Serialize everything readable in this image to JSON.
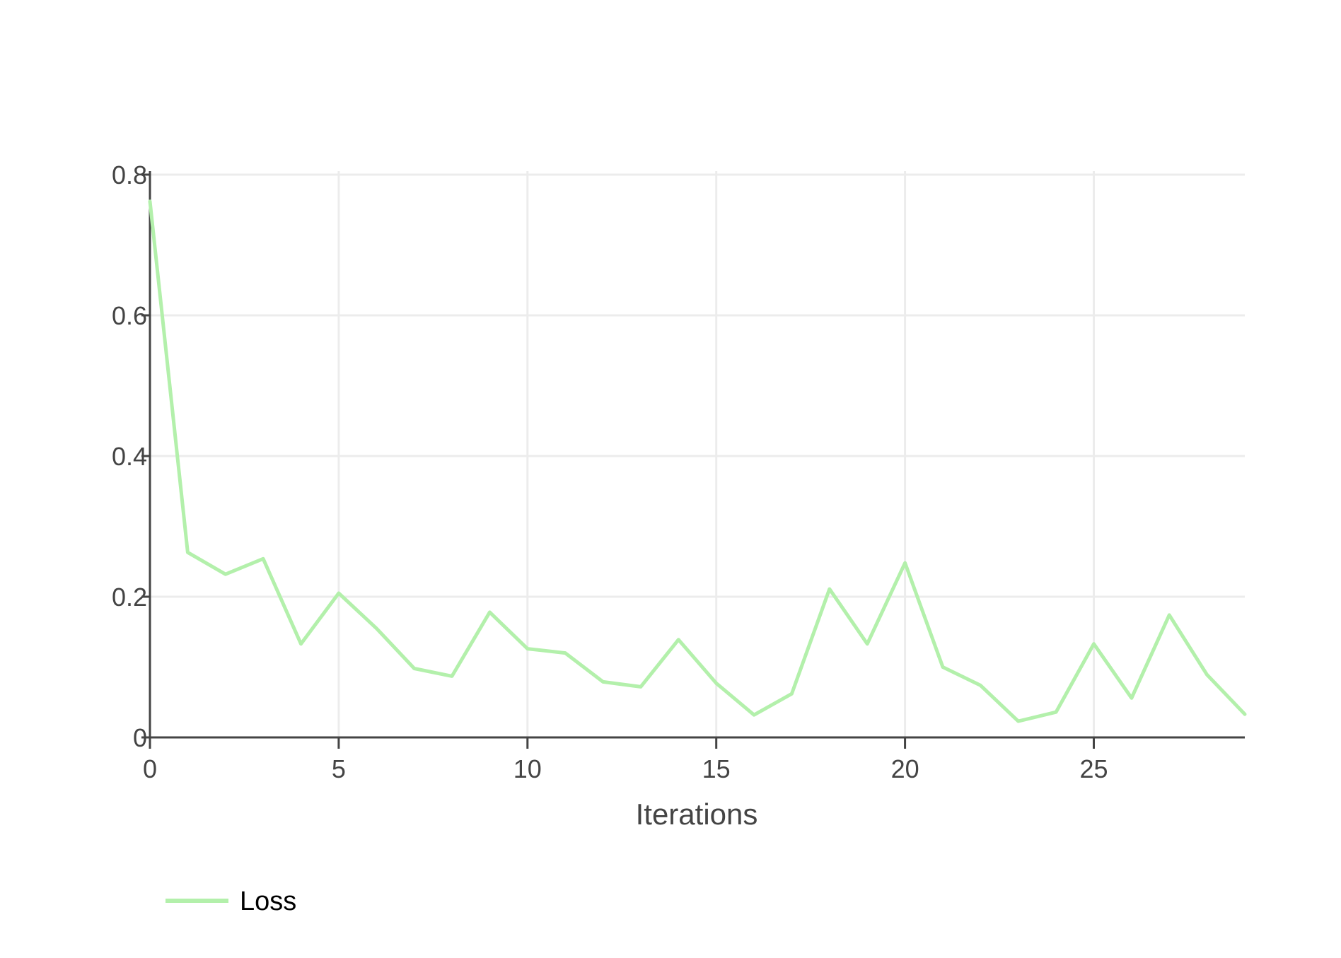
{
  "chart_data": {
    "type": "line",
    "title": "",
    "xlabel": "Iterations",
    "ylabel": "",
    "xlim": [
      0,
      29
    ],
    "ylim": [
      0,
      0.8
    ],
    "x_ticks": [
      0,
      5,
      10,
      15,
      20,
      25
    ],
    "y_ticks": [
      0,
      0.2,
      0.4,
      0.6,
      0.8
    ],
    "grid": true,
    "legend_position": "bottom-left",
    "series": [
      {
        "name": "Loss",
        "color": "#b3f0ab",
        "x": [
          0,
          1,
          2,
          3,
          4,
          5,
          6,
          7,
          8,
          9,
          10,
          11,
          12,
          13,
          14,
          15,
          16,
          17,
          18,
          19,
          20,
          21,
          22,
          23,
          24,
          25,
          26,
          27,
          28,
          29
        ],
        "values": [
          0.762,
          0.263,
          0.232,
          0.254,
          0.133,
          0.205,
          0.155,
          0.098,
          0.087,
          0.178,
          0.126,
          0.12,
          0.079,
          0.072,
          0.139,
          0.077,
          0.032,
          0.062,
          0.211,
          0.133,
          0.248,
          0.1,
          0.074,
          0.023,
          0.036,
          0.133,
          0.056,
          0.174,
          0.089,
          0.033
        ]
      }
    ]
  }
}
